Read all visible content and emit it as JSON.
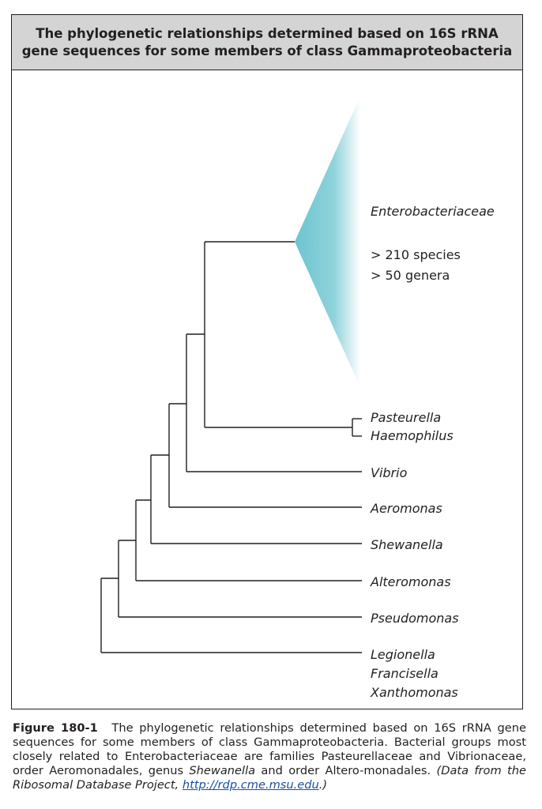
{
  "title_line1": "The phylogenetic relationships determined based on 16S rRNA",
  "title_line2": "gene sequences for some members of class Gammaproteobacteria",
  "clade": {
    "name": "Enterobacteriaceae",
    "species": "> 210 species",
    "genera": "> 50 genera",
    "color": "#6cc4cf"
  },
  "taxa": {
    "pasteurella": "Pasteurella",
    "haemophilus": "Haemophilus",
    "vibrio": "Vibrio",
    "aeromonas": "Aeromonas",
    "shewanella": "Shewanella",
    "alteromonas": "Alteromonas",
    "pseudomonas": "Pseudomonas",
    "legionella": "Legionella",
    "francisella": "Francisella",
    "xanthomonas": "Xanthomonas"
  },
  "caption": {
    "label": "Figure 180-1",
    "text1": "The phylogenetic relationships determined based on 16S rRNA gene sequences for some members of class Gammaproteobacteria. Bacterial groups most closely related to Enterobacteriaceae are families Pasteurellaceae and Vibrionaceae, order Aeromonadales, genus",
    "shewanella": "Shewanella",
    "text2": "and order Altero-monadales.",
    "source": "(Data from the Ribosomal Database Project,",
    "url": "http://rdp.cme.msu.edu",
    "close": ".)"
  }
}
